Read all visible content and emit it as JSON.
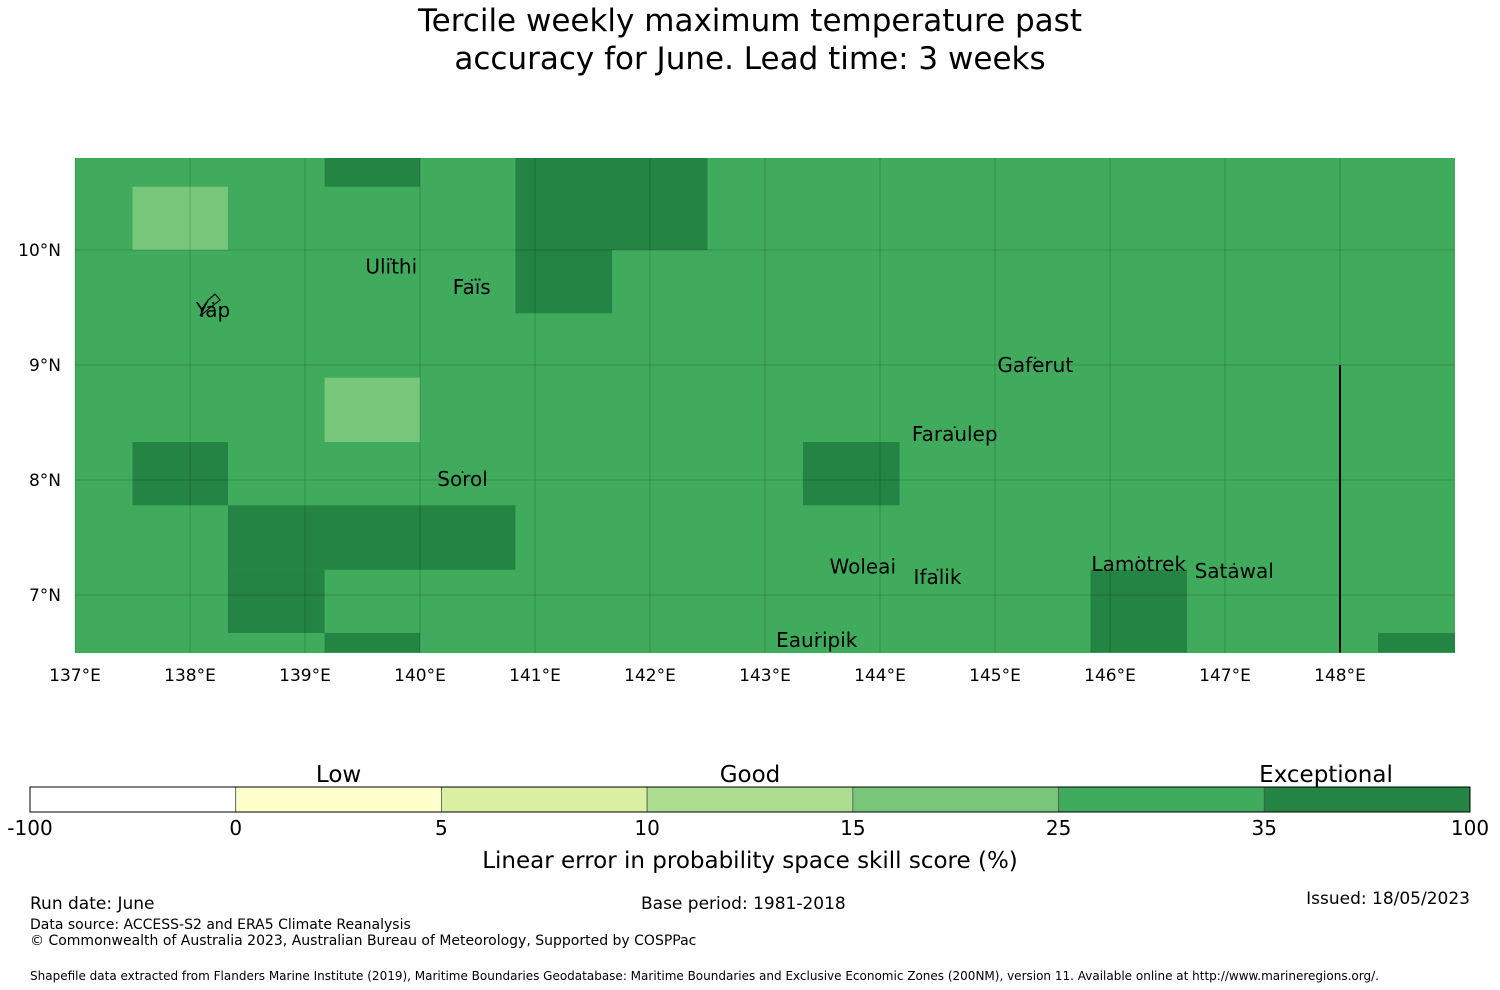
{
  "title": {
    "line1": "Tercile weekly maximum temperature past",
    "line2": "accuracy for June. Lead time: 3 weeks"
  },
  "map": {
    "lon_range": [
      137,
      149
    ],
    "lat_range": [
      6.5,
      10.8
    ],
    "lon_ticks": [
      {
        "value": 137,
        "label": "137°E"
      },
      {
        "value": 138,
        "label": "138°E"
      },
      {
        "value": 139,
        "label": "139°E"
      },
      {
        "value": 140,
        "label": "140°E"
      },
      {
        "value": 141,
        "label": "141°E"
      },
      {
        "value": 142,
        "label": "142°E"
      },
      {
        "value": 143,
        "label": "143°E"
      },
      {
        "value": 144,
        "label": "144°E"
      },
      {
        "value": 145,
        "label": "145°E"
      },
      {
        "value": 146,
        "label": "146°E"
      },
      {
        "value": 147,
        "label": "147°E"
      },
      {
        "value": 148,
        "label": "148°E"
      }
    ],
    "lat_ticks": [
      {
        "value": 10,
        "label": "10°N"
      },
      {
        "value": 9,
        "label": "9°N"
      },
      {
        "value": 8,
        "label": "8°N"
      },
      {
        "value": 7,
        "label": "7°N"
      }
    ],
    "background_category": "25-35",
    "cells": [
      {
        "lon": [
          137.5,
          138.33
        ],
        "lat": [
          10.0,
          10.55
        ],
        "category": "15-25"
      },
      {
        "lon": [
          139.17,
          140.0
        ],
        "lat": [
          10.55,
          10.8
        ],
        "category": "35-100"
      },
      {
        "lon": [
          140.83,
          142.5
        ],
        "lat": [
          10.0,
          10.8
        ],
        "category": "35-100"
      },
      {
        "lon": [
          140.83,
          141.67
        ],
        "lat": [
          9.45,
          10.0
        ],
        "category": "35-100"
      },
      {
        "lon": [
          139.17,
          140.0
        ],
        "lat": [
          8.33,
          8.89
        ],
        "category": "15-25"
      },
      {
        "lon": [
          137.5,
          138.33
        ],
        "lat": [
          7.78,
          8.33
        ],
        "category": "35-100"
      },
      {
        "lon": [
          138.33,
          140.83
        ],
        "lat": [
          7.22,
          7.78
        ],
        "category": "35-100"
      },
      {
        "lon": [
          138.33,
          139.17
        ],
        "lat": [
          6.67,
          7.22
        ],
        "category": "35-100"
      },
      {
        "lon": [
          139.17,
          140.0
        ],
        "lat": [
          6.5,
          6.67
        ],
        "category": "35-100"
      },
      {
        "lon": [
          143.33,
          144.17
        ],
        "lat": [
          7.78,
          8.33
        ],
        "category": "35-100"
      },
      {
        "lon": [
          145.83,
          146.67
        ],
        "lat": [
          6.5,
          7.22
        ],
        "category": "35-100"
      },
      {
        "lon": [
          148.33,
          149.0
        ],
        "lat": [
          6.5,
          6.67
        ],
        "category": "35-100"
      }
    ],
    "boundary_line": {
      "lon": 148,
      "lat": [
        6.5,
        9.0
      ]
    },
    "places": [
      {
        "name": "Ulithi",
        "lon": 139.75,
        "lat": 9.85
      },
      {
        "name": "Faïs",
        "lon": 140.45,
        "lat": 9.67
      },
      {
        "name": "Yap",
        "lon": 138.2,
        "lat": 9.47
      },
      {
        "name": "Gaferut",
        "lon": 145.35,
        "lat": 8.99
      },
      {
        "name": "Faraulep",
        "lon": 144.65,
        "lat": 8.39
      },
      {
        "name": "Sorol",
        "lon": 140.37,
        "lat": 8.0
      },
      {
        "name": "Woleai",
        "lon": 143.85,
        "lat": 7.24
      },
      {
        "name": "Ifalik",
        "lon": 144.5,
        "lat": 7.15
      },
      {
        "name": "Lamotrek",
        "lon": 146.25,
        "lat": 7.26
      },
      {
        "name": "Satawal",
        "lon": 147.08,
        "lat": 7.2
      },
      {
        "name": "Eauripik",
        "lon": 143.45,
        "lat": 6.6
      }
    ]
  },
  "colorbar": {
    "bins": [
      {
        "range": "-100-0",
        "color": "#ffffff"
      },
      {
        "range": "0-5",
        "color": "#ffffcc"
      },
      {
        "range": "5-10",
        "color": "#d9f0a3"
      },
      {
        "range": "10-15",
        "color": "#addd8e"
      },
      {
        "range": "15-25",
        "color": "#78c679"
      },
      {
        "range": "25-35",
        "color": "#41ab5d"
      },
      {
        "range": "35-100",
        "color": "#238443"
      }
    ],
    "tick_labels": [
      "-100",
      "0",
      "5",
      "10",
      "15",
      "25",
      "35",
      "100"
    ],
    "categories": [
      "Low",
      "Good",
      "Exceptional"
    ],
    "label": "Linear error in probability space skill score (%)"
  },
  "footer": {
    "run_date": "Run date: June",
    "base_period": "Base period: 1981-2018",
    "issued": "Issued: 18/05/2023",
    "data_source": "Data source: ACCESS-S2 and ERA5 Climate Reanalysis",
    "copyright": "© Commonwealth of Australia 2023, Australian Bureau of Meteorology, Supported by COSPPac",
    "shapefile": "Shapefile data extracted from Flanders Marine Institute (2019), Maritime Boundaries Geodatabase: Maritime Boundaries and Exclusive Economic Zones (200NM), version 11. Available online at http://www.marineregions.org/."
  }
}
